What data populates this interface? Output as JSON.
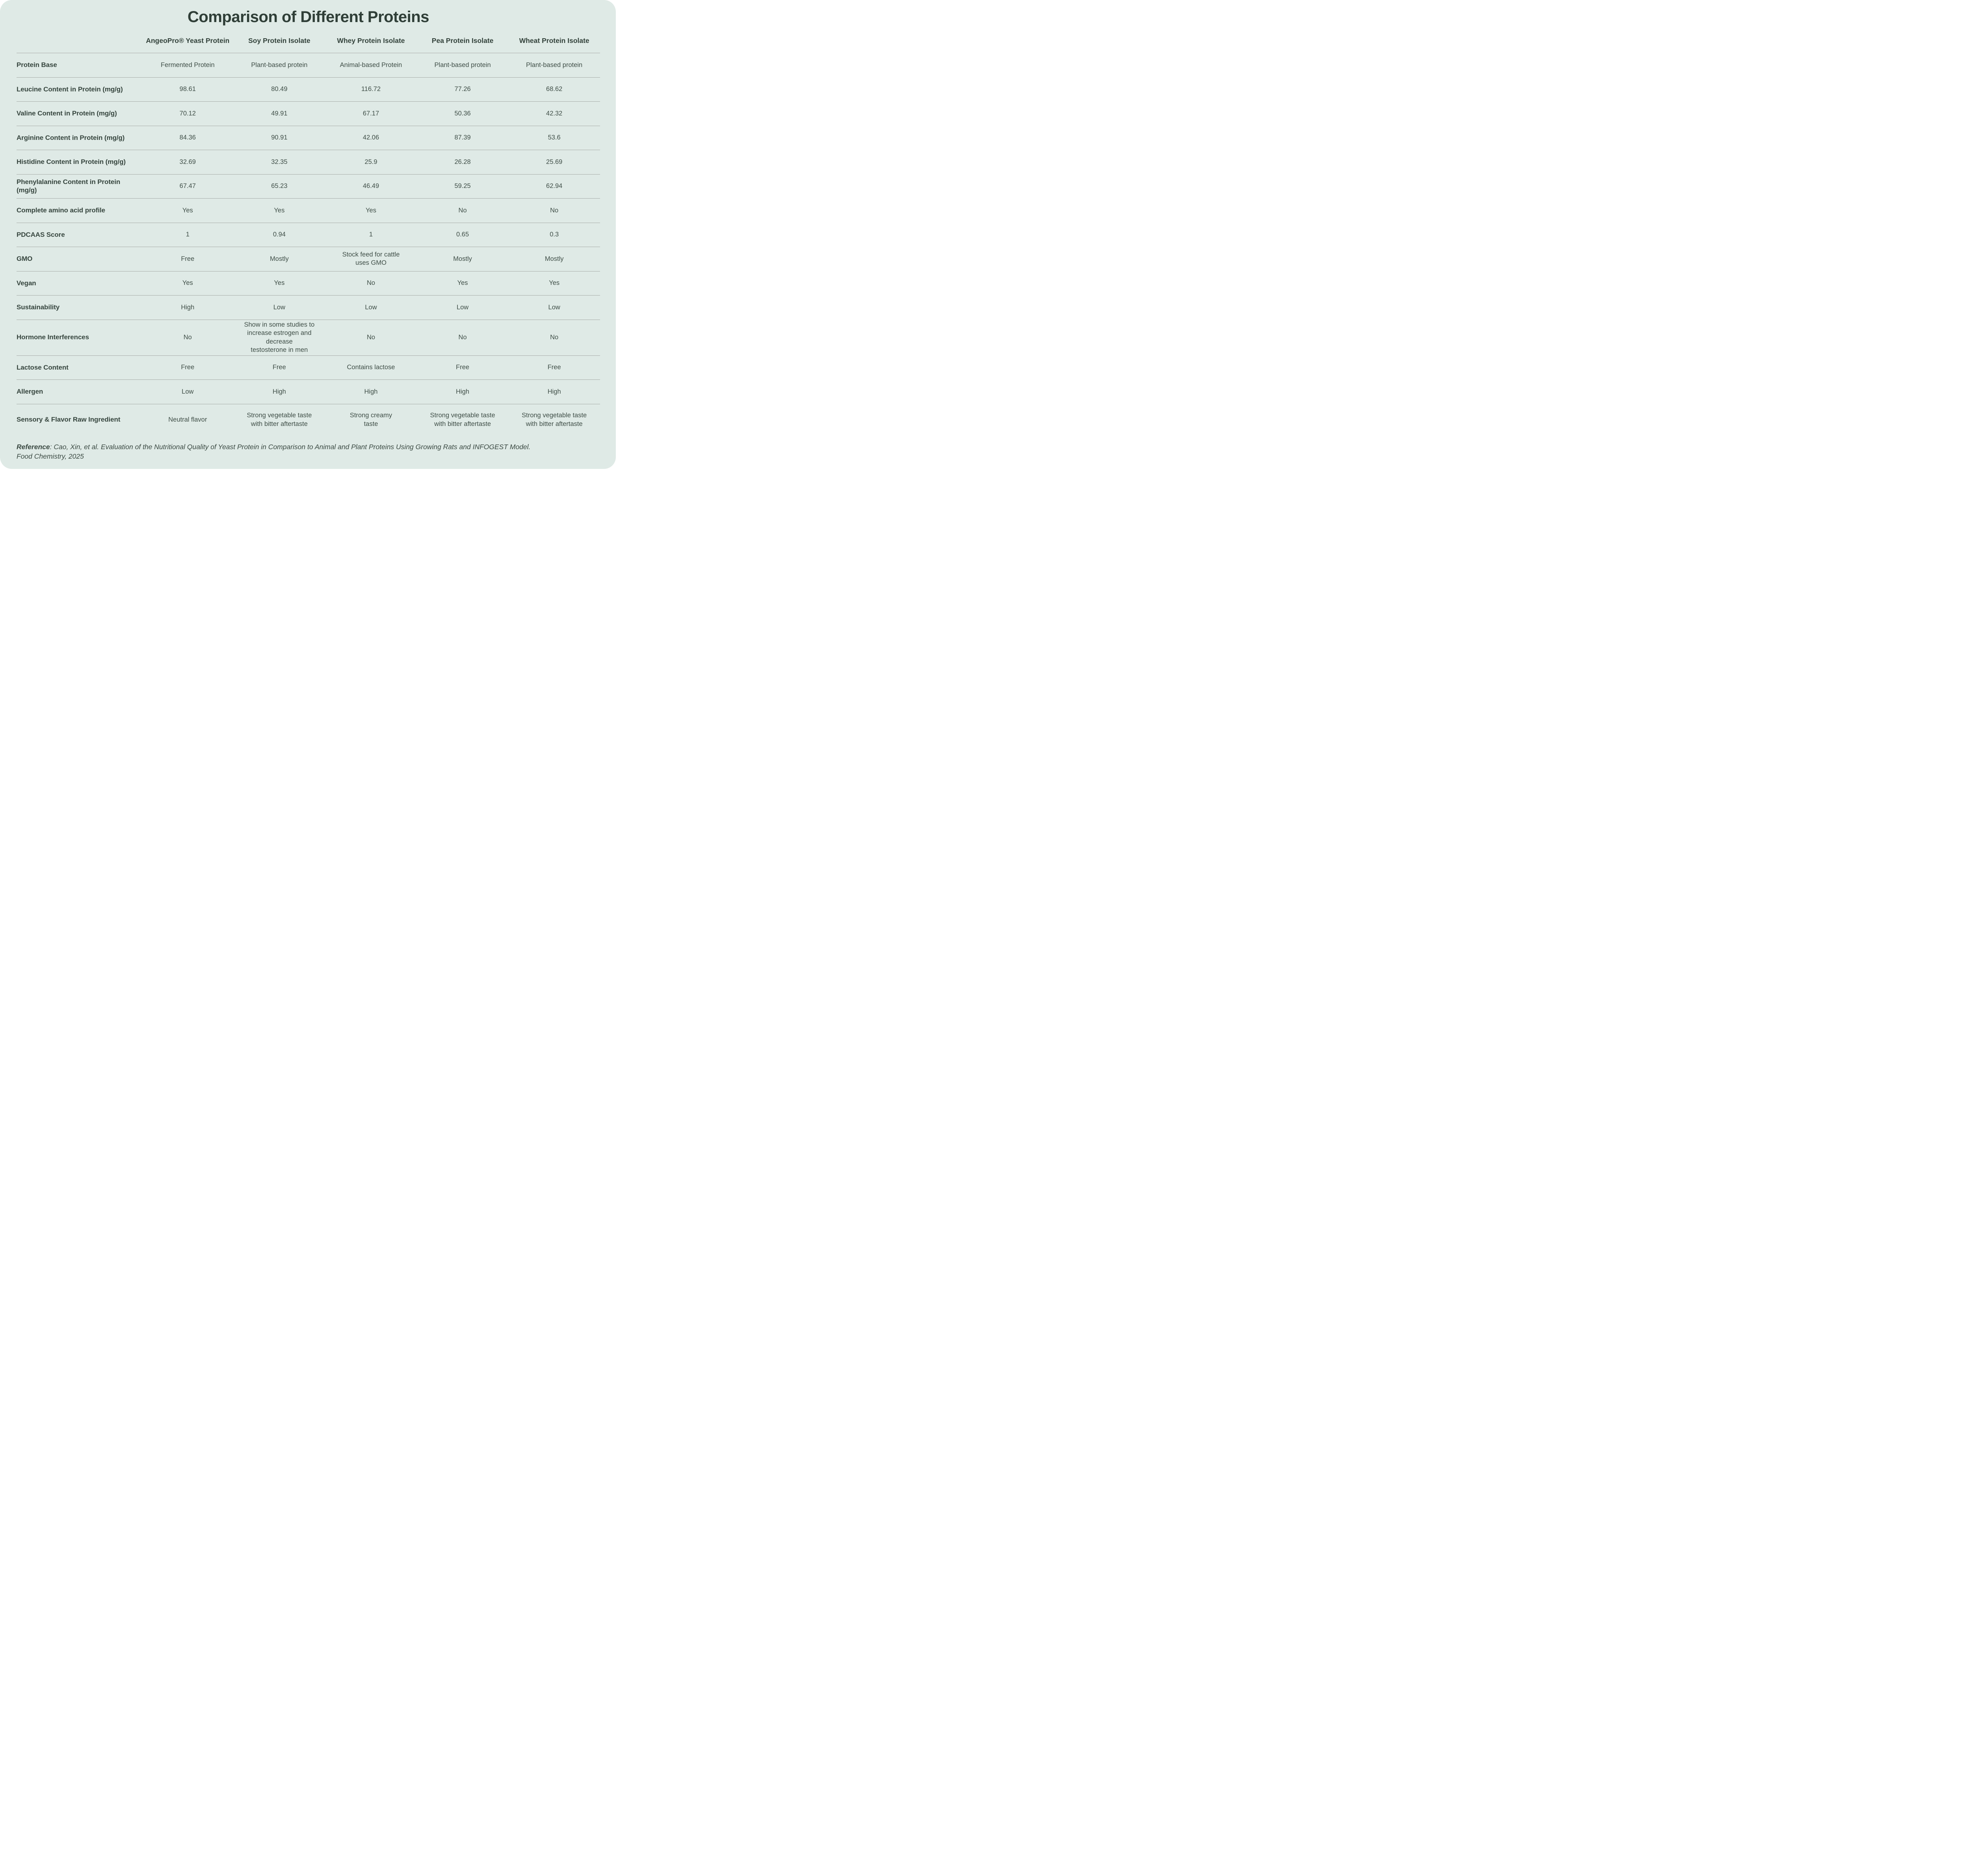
{
  "title": "Comparison of Different Proteins",
  "columns": [
    "AngeoPro® Yeast Protein",
    "Soy Protein Isolate",
    "Whey Protein Isolate",
    "Pea Protein Isolate",
    "Wheat Protein Isolate"
  ],
  "rows": [
    {
      "label": "Protein Base",
      "values": [
        "Fermented Protein",
        "Plant-based protein",
        "Animal-based Protein",
        "Plant-based protein",
        "Plant-based protein"
      ]
    },
    {
      "label": "Leucine Content in Protein (mg/g)",
      "values": [
        "98.61",
        "80.49",
        "116.72",
        "77.26",
        "68.62"
      ]
    },
    {
      "label": "Valine Content in Protein (mg/g)",
      "values": [
        "70.12",
        "49.91",
        "67.17",
        "50.36",
        "42.32"
      ]
    },
    {
      "label": "Arginine Content in Protein (mg/g)",
      "values": [
        "84.36",
        "90.91",
        "42.06",
        "87.39",
        "53.6"
      ]
    },
    {
      "label": "Histidine Content in Protein (mg/g)",
      "values": [
        "32.69",
        "32.35",
        "25.9",
        "26.28",
        "25.69"
      ]
    },
    {
      "label": "Phenylalanine Content in Protein (mg/g)",
      "values": [
        "67.47",
        "65.23",
        "46.49",
        "59.25",
        "62.94"
      ]
    },
    {
      "label": "Complete amino acid profile",
      "values": [
        "Yes",
        "Yes",
        "Yes",
        "No",
        "No"
      ]
    },
    {
      "label": "PDCAAS Score",
      "values": [
        "1",
        "0.94",
        "1",
        "0.65",
        "0.3"
      ]
    },
    {
      "label": "GMO",
      "values": [
        "Free",
        "Mostly",
        "Stock feed for cattle\nuses GMO",
        "Mostly",
        "Mostly"
      ]
    },
    {
      "label": "Vegan",
      "values": [
        "Yes",
        "Yes",
        "No",
        "Yes",
        "Yes"
      ]
    },
    {
      "label": "Sustainability",
      "values": [
        "High",
        "Low",
        "Low",
        "Low",
        "Low"
      ]
    },
    {
      "label": "Hormone Interferences",
      "values": [
        "No",
        "Show in some studies to\nincrease estrogen and decrease\ntestosterone in men",
        "No",
        "No",
        "No"
      ]
    },
    {
      "label": "Lactose Content",
      "values": [
        "Free",
        "Free",
        "Contains lactose",
        "Free",
        "Free"
      ]
    },
    {
      "label": "Allergen",
      "values": [
        "Low",
        "High",
        "High",
        "High",
        "High"
      ]
    },
    {
      "label": "Sensory & Flavor Raw Ingredient",
      "values": [
        "Neutral flavor",
        "Strong vegetable taste\nwith bitter aftertaste",
        "Strong creamy\ntaste",
        "Strong vegetable taste\nwith bitter aftertaste",
        "Strong vegetable taste\nwith bitter aftertaste"
      ]
    }
  ],
  "reference": {
    "label": "Reference",
    "colon": ":  ",
    "text": "Cao, Xin, et al. Evaluation of the Nutritional Quality of Yeast Protein in Comparison to Animal and Plant Proteins Using Growing Rats and INFOGEST Model.",
    "text2": "Food Chemistry, 2025"
  },
  "colors": {
    "page_bg": "#ffffff",
    "card_bg": "#dfeae6",
    "heading_text": "#2f3e37",
    "body_text": "#3f4e47",
    "divider": "#a7aca9"
  }
}
